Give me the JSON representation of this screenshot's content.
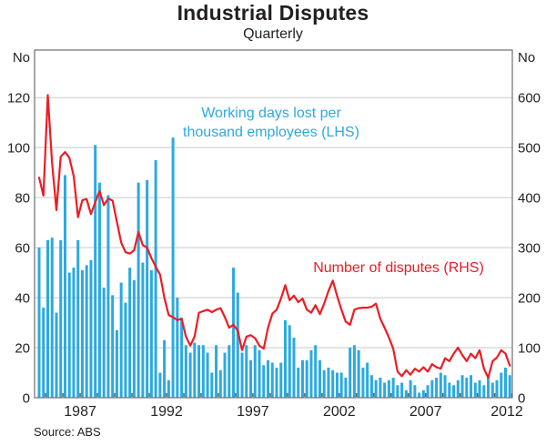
{
  "title": "Industrial Disputes",
  "subtitle": "Quarterly",
  "source": "Source: ABS",
  "left_axis": {
    "unit": "No",
    "ticks": [
      0,
      20,
      40,
      60,
      80,
      100,
      120
    ],
    "min": 0,
    "max": 139
  },
  "right_axis": {
    "unit": "No",
    "ticks": [
      0,
      100,
      200,
      300,
      400,
      500,
      600
    ],
    "min": 0,
    "max": 695
  },
  "x_axis": {
    "labels": [
      "1987",
      "1992",
      "1997",
      "2002",
      "2007",
      "2012"
    ],
    "start": "1984:Q3",
    "end": "2011:Q4"
  },
  "legend": {
    "bars_line1": "Working days lost per",
    "bars_line2": "thousand employees (LHS)",
    "line_label": "Number of disputes (RHS)"
  },
  "colors": {
    "bars": "#2CA9E1",
    "line": "#ED1C24",
    "text": "#231F20",
    "grid": "#C8C9CB",
    "frame": "#6D6E71",
    "year_tick": "#58595B"
  },
  "chart_data": {
    "type": "bar+line",
    "frequency": "quarterly",
    "title": "Industrial Disputes",
    "subtitle": "Quarterly",
    "x_start_label": "1984:Q3",
    "x_tick_labels": [
      "1987",
      "1992",
      "1997",
      "2002",
      "2007",
      "2012"
    ],
    "grid": true,
    "left_ylim": [
      0,
      139
    ],
    "right_ylim": [
      0,
      695
    ],
    "series": [
      {
        "name": "Working days lost per thousand employees (LHS)",
        "type": "bar",
        "axis": "left",
        "values": [
          60,
          36,
          63,
          64,
          34,
          63,
          89,
          50,
          52,
          63,
          51,
          53,
          55,
          101,
          86,
          44,
          81,
          41,
          27,
          46,
          38,
          52,
          47,
          86,
          54,
          87,
          51,
          95,
          10,
          23,
          7,
          104,
          40,
          32,
          21,
          18,
          22,
          21,
          21,
          18,
          10,
          21,
          11,
          18,
          21,
          52,
          42,
          18,
          21,
          15,
          21,
          19,
          13,
          15,
          14,
          12,
          14,
          31,
          29,
          24,
          12,
          15,
          15,
          19,
          21,
          15,
          11,
          12,
          11,
          10,
          10,
          8,
          20,
          21,
          19,
          12,
          14,
          9,
          7,
          8,
          6,
          7,
          8,
          5,
          6,
          3,
          7,
          5,
          2,
          3,
          5,
          7,
          8,
          10,
          9,
          6,
          5,
          7,
          9,
          8,
          9,
          6,
          7,
          5,
          9,
          6,
          7,
          10,
          12,
          9
        ]
      },
      {
        "name": "Number of disputes (RHS)",
        "type": "line",
        "axis": "right",
        "values": [
          440,
          404,
          605,
          470,
          375,
          482,
          491,
          480,
          443,
          361,
          395,
          397,
          367,
          391,
          413,
          385,
          398,
          394,
          352,
          310,
          291,
          288,
          295,
          331,
          305,
          300,
          279,
          262,
          246,
          200,
          165,
          161,
          155,
          158,
          122,
          104,
          122,
          170,
          173,
          176,
          171,
          176,
          179,
          161,
          140,
          146,
          134,
          95,
          122,
          125,
          119,
          104,
          98,
          140,
          168,
          176,
          198,
          225,
          195,
          204,
          191,
          198,
          176,
          170,
          185,
          167,
          188,
          213,
          234,
          204,
          176,
          152,
          146,
          176,
          179,
          180,
          180,
          182,
          188,
          158,
          140,
          120,
          98,
          52,
          43,
          55,
          46,
          58,
          52,
          61,
          52,
          67,
          61,
          58,
          79,
          73,
          88,
          100,
          85,
          73,
          88,
          79,
          95,
          58,
          40,
          73,
          80,
          95,
          88,
          64
        ]
      }
    ]
  }
}
